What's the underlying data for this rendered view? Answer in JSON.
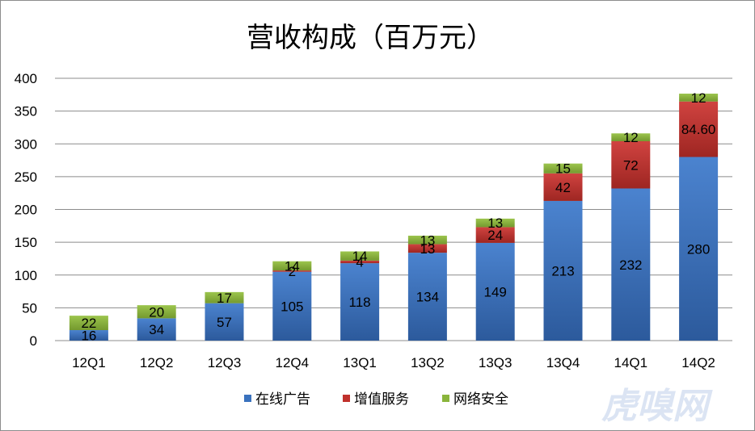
{
  "chart_data": {
    "type": "bar",
    "stacked": true,
    "title": "营收构成（百万元）",
    "categories": [
      "12Q1",
      "12Q2",
      "12Q3",
      "12Q4",
      "13Q1",
      "13Q2",
      "13Q3",
      "13Q4",
      "14Q1",
      "14Q2"
    ],
    "series": [
      {
        "name": "在线广告",
        "color": "#3a72be",
        "values": [
          16,
          34,
          57,
          105,
          118,
          134,
          149,
          213,
          232,
          280
        ],
        "labels": [
          "16",
          "34",
          "57",
          "105",
          "118",
          "134",
          "149",
          "213",
          "232",
          "280"
        ]
      },
      {
        "name": "增值服务",
        "color": "#c0312c",
        "values": [
          0,
          0,
          0,
          2,
          4,
          13,
          24,
          42,
          72,
          84.6
        ],
        "labels": [
          "",
          "",
          "",
          "2",
          "4",
          "13",
          "24",
          "42",
          "72",
          "84.60"
        ]
      },
      {
        "name": "网络安全",
        "color": "#8ab53c",
        "values": [
          22,
          20,
          17,
          14,
          14,
          13,
          13,
          15,
          12,
          12
        ],
        "labels": [
          "22",
          "20",
          "17",
          "14",
          "14",
          "13",
          "13",
          "15",
          "12",
          "12"
        ]
      }
    ],
    "ylim": [
      0,
      400
    ],
    "yticks": [
      0,
      50,
      100,
      150,
      200,
      250,
      300,
      350,
      400
    ],
    "grid": true,
    "legend_position": "bottom"
  },
  "watermark": "虎嗅网"
}
